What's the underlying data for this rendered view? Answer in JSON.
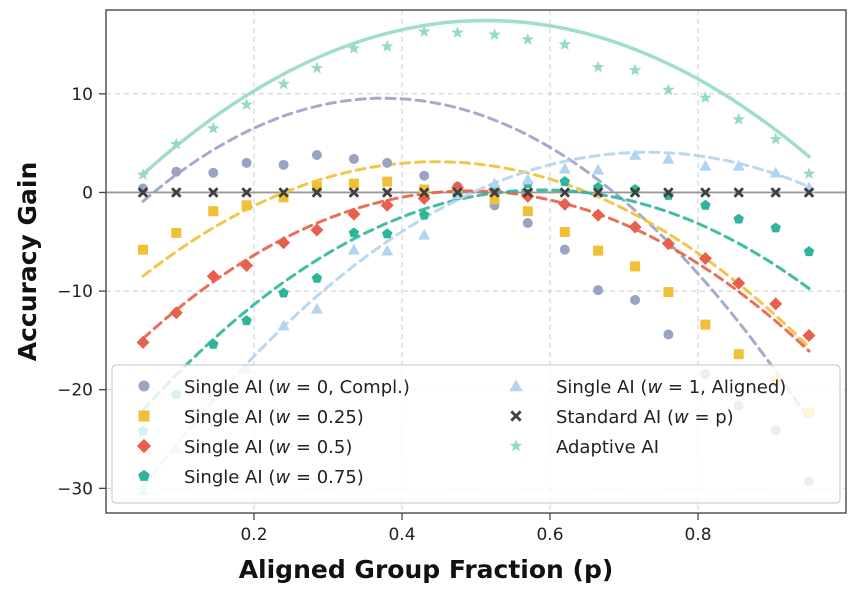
{
  "chart_data": {
    "type": "scatter",
    "title": "",
    "xlabel": "Aligned Group Fraction (p)",
    "ylabel": "Accuracy Gain",
    "xlim": [
      0.0,
      1.0
    ],
    "ylim": [
      -32.5,
      18.5
    ],
    "xticks": [
      0.2,
      0.4,
      0.6,
      0.8
    ],
    "xtick_labels": [
      "0.2",
      "0.4",
      "0.6",
      "0.8"
    ],
    "yticks": [
      10,
      0,
      -10,
      -20,
      -30
    ],
    "ytick_labels": [
      "10",
      "0",
      "−10",
      "−20",
      "−30"
    ],
    "grid": true,
    "legend_position": "bottom",
    "x": [
      0.05,
      0.095,
      0.145,
      0.19,
      0.24,
      0.285,
      0.335,
      0.38,
      0.43,
      0.475,
      0.525,
      0.57,
      0.62,
      0.665,
      0.715,
      0.76,
      0.81,
      0.855,
      0.905,
      0.95
    ],
    "series": [
      {
        "name": "Single AI (w = 0, Compl.)",
        "legend_main": "Single AI (",
        "legend_math": "w",
        "legend_rest": " = 0, Compl.)",
        "color": "#9BA3C4",
        "marker": "circle",
        "fit": [
          -4.35,
          74.1,
          -98.7
        ],
        "values": [
          0.4,
          2.1,
          2.0,
          3.0,
          2.8,
          3.8,
          3.4,
          3.0,
          1.7,
          0.6,
          -1.3,
          -3.1,
          -5.8,
          -9.9,
          -10.9,
          -14.4,
          -18.4,
          -21.6,
          -24.1,
          -29.3
        ]
      },
      {
        "name": "Single AI (w = 0.25)",
        "legend_main": "Single AI (",
        "legend_math": "w",
        "legend_rest": " = 0.25)",
        "color": "#F2C037",
        "marker": "square",
        "fit": [
          -11.6,
          66.0,
          -74.0
        ],
        "values": [
          -5.8,
          -4.1,
          -1.9,
          -1.3,
          -0.5,
          0.6,
          0.9,
          1.1,
          0.3,
          0.2,
          -0.7,
          -1.9,
          -4.0,
          -5.9,
          -7.5,
          -10.1,
          -13.4,
          -16.4,
          -19.1,
          -22.3
        ]
      },
      {
        "name": "Single AI (w = 0.5)",
        "legend_main": "Single AI (",
        "legend_math": "w",
        "legend_rest": " = 0.5)",
        "color": "#E8604C",
        "marker": "diamond",
        "fit": [
          -18.4,
          75.6,
          -77.0
        ],
        "values": [
          -15.2,
          -12.2,
          -8.5,
          -7.4,
          -5.1,
          -3.8,
          -2.2,
          -1.3,
          -0.6,
          0.5,
          0.3,
          -0.4,
          -1.2,
          -2.3,
          -3.5,
          -5.2,
          -6.7,
          -9.2,
          -11.3,
          -14.5
        ]
      },
      {
        "name": "Single AI (w = 0.75)",
        "legend_main": "Single AI (",
        "legend_math": "w",
        "legend_rest": " = 0.75)",
        "color": "#2DB59A",
        "marker": "pentagon",
        "fit": [
          -26.4,
          90.5,
          -76.8
        ],
        "values": [
          -24.2,
          -20.5,
          -15.4,
          -13.0,
          -10.2,
          -8.7,
          -4.1,
          -4.2,
          -2.3,
          -0.3,
          0.5,
          0.9,
          1.1,
          0.5,
          0.3,
          -0.3,
          -1.3,
          -2.7,
          -3.6,
          -6.0
        ]
      },
      {
        "name": "Single AI (w = 1, Aligned)",
        "legend_main": "Single AI (",
        "legend_math": "w",
        "legend_rest": " = 1, Aligned)",
        "color": "#B3D4F0",
        "marker": "triangle",
        "fit": [
          -35.1,
          107.1,
          -73.2
        ],
        "values": [
          -30.2,
          -25.9,
          -20.3,
          -17.9,
          -13.5,
          -11.8,
          -5.8,
          -5.9,
          -4.3,
          -0.2,
          0.9,
          1.3,
          2.4,
          2.3,
          3.8,
          3.4,
          2.7,
          2.7,
          2.0,
          0.5
        ]
      },
      {
        "name": "Standard AI (w = p)",
        "legend_main": "Standard AI (",
        "legend_math": "w",
        "legend_rest": " = p)",
        "color": "#3F3F3F",
        "marker": "x",
        "fit": null,
        "values": [
          0,
          0,
          0,
          0,
          0,
          0,
          0,
          0,
          0,
          0,
          0,
          0,
          0,
          0,
          0,
          0,
          0,
          0,
          0,
          0
        ]
      },
      {
        "name": "Adaptive AI",
        "legend_main": "Adaptive AI",
        "legend_math": "",
        "legend_rest": "",
        "color": "#98D8C6",
        "marker": "star",
        "fit": [
          -1.7,
          74.5,
          -72.5
        ],
        "values": [
          1.8,
          4.9,
          6.5,
          8.9,
          11.0,
          12.6,
          14.6,
          14.8,
          16.3,
          16.2,
          16.0,
          15.5,
          15.0,
          12.7,
          12.4,
          10.4,
          9.6,
          7.4,
          5.4,
          1.9
        ]
      }
    ]
  }
}
